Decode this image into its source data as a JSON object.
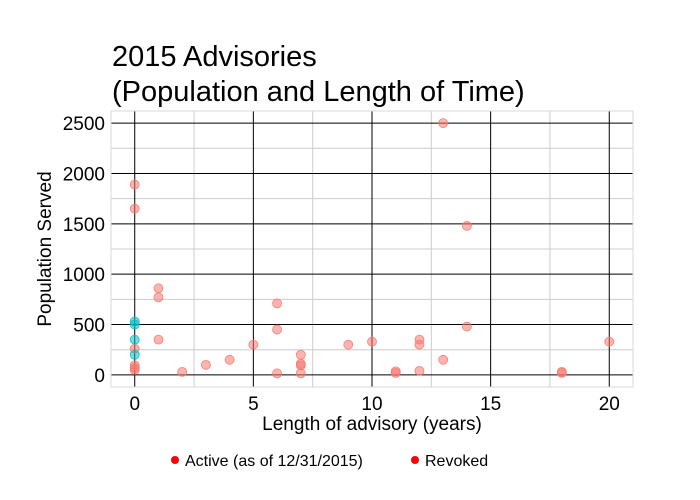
{
  "chart_data": {
    "type": "scatter",
    "title_lines": [
      "2015 Advisories",
      "(Population and Length of Time)"
    ],
    "xlabel": "Length of advisory (years)",
    "ylabel": "Population Served",
    "xlim": [
      -1,
      21
    ],
    "ylim": [
      -120,
      2620
    ],
    "x_ticks": [
      0,
      5,
      10,
      15,
      20
    ],
    "y_ticks": [
      0,
      500,
      1000,
      1500,
      2000,
      2500
    ],
    "x_minor_ticks": [
      2.5,
      7.5,
      12.5,
      17.5
    ],
    "y_minor_ticks": [
      250,
      750,
      1250,
      1750,
      2250
    ],
    "grid": true,
    "legend_position": "bottom",
    "series": [
      {
        "name": "Active (as of 12/31/2015)",
        "legend_color": "#ff0000",
        "marker_color": "#f8766d",
        "points": [
          {
            "x": 0,
            "y": 1890
          },
          {
            "x": 0,
            "y": 1650
          },
          {
            "x": 0,
            "y": 260
          },
          {
            "x": 0,
            "y": 95
          },
          {
            "x": 0,
            "y": 70
          },
          {
            "x": 0,
            "y": 50
          },
          {
            "x": 1,
            "y": 860
          },
          {
            "x": 1,
            "y": 770
          },
          {
            "x": 1,
            "y": 350
          },
          {
            "x": 2,
            "y": 30
          },
          {
            "x": 3,
            "y": 100
          },
          {
            "x": 4,
            "y": 150
          },
          {
            "x": 5,
            "y": 300
          },
          {
            "x": 6,
            "y": 710
          },
          {
            "x": 6,
            "y": 450
          },
          {
            "x": 6,
            "y": 15
          },
          {
            "x": 7,
            "y": 200
          },
          {
            "x": 7,
            "y": 110
          },
          {
            "x": 7,
            "y": 95
          },
          {
            "x": 7,
            "y": 15
          },
          {
            "x": 9,
            "y": 300
          },
          {
            "x": 10,
            "y": 330
          },
          {
            "x": 11,
            "y": 35
          },
          {
            "x": 11,
            "y": 20
          },
          {
            "x": 12,
            "y": 350
          },
          {
            "x": 12,
            "y": 300
          },
          {
            "x": 12,
            "y": 40
          },
          {
            "x": 13,
            "y": 2500
          },
          {
            "x": 13,
            "y": 150
          },
          {
            "x": 14,
            "y": 1480
          },
          {
            "x": 14,
            "y": 480
          },
          {
            "x": 18,
            "y": 30
          },
          {
            "x": 18,
            "y": 20
          },
          {
            "x": 20,
            "y": 330
          }
        ]
      },
      {
        "name": "Revoked",
        "legend_color": "#ff0000",
        "marker_color": "#00bfc4",
        "points": [
          {
            "x": 0,
            "y": 530
          },
          {
            "x": 0,
            "y": 500
          },
          {
            "x": 0,
            "y": 350
          },
          {
            "x": 0,
            "y": 200
          }
        ]
      }
    ]
  }
}
